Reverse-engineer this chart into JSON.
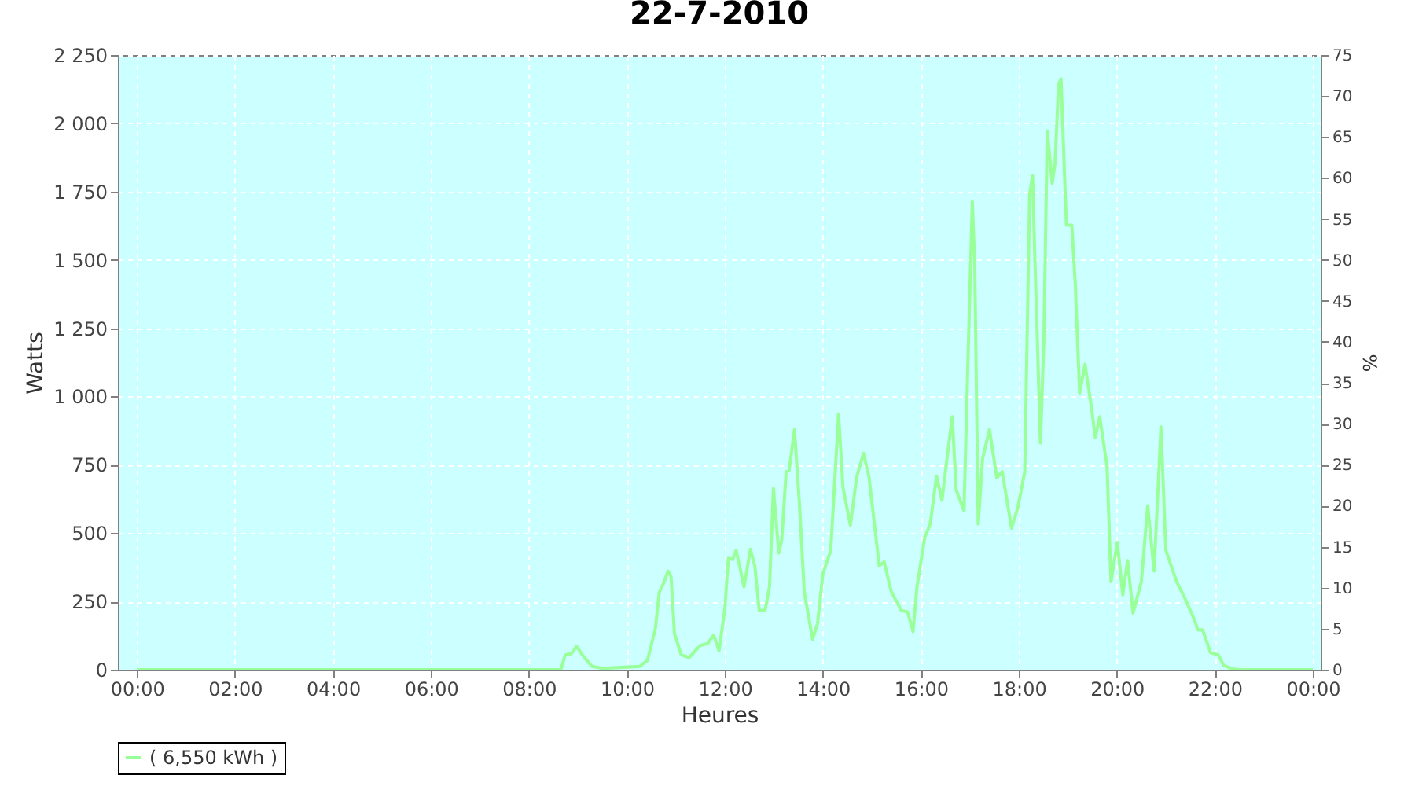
{
  "chart_data": {
    "type": "line",
    "title": "22-7-2010",
    "xlabel": "Heures",
    "ylabel": "Watts",
    "y2label": "%",
    "xlim": [
      -0.39,
      24.16
    ],
    "ylim": [
      0,
      2250
    ],
    "y2lim": [
      0,
      75
    ],
    "xticks": [
      {
        "value": 0,
        "label": "00:00"
      },
      {
        "value": 2,
        "label": "02:00"
      },
      {
        "value": 4,
        "label": "04:00"
      },
      {
        "value": 6,
        "label": "06:00"
      },
      {
        "value": 8,
        "label": "08:00"
      },
      {
        "value": 10,
        "label": "10:00"
      },
      {
        "value": 12,
        "label": "12:00"
      },
      {
        "value": 14,
        "label": "14:00"
      },
      {
        "value": 16,
        "label": "16:00"
      },
      {
        "value": 18,
        "label": "18:00"
      },
      {
        "value": 20,
        "label": "20:00"
      },
      {
        "value": 22,
        "label": "22:00"
      },
      {
        "value": 24,
        "label": "00:00"
      }
    ],
    "yticks": [
      0,
      250,
      500,
      750,
      {
        "value": 1000,
        "label": "1 000"
      },
      {
        "value": 1250,
        "label": "1 250"
      },
      {
        "value": 1500,
        "label": "1 500"
      },
      {
        "value": 1750,
        "label": "1 750"
      },
      {
        "value": 2000,
        "label": "2 000"
      },
      {
        "value": 2250,
        "label": "2 250"
      }
    ],
    "y2ticks": [
      0,
      5,
      10,
      15,
      20,
      25,
      30,
      35,
      40,
      45,
      50,
      55,
      60,
      65,
      70,
      75
    ],
    "grid": true,
    "legend": "bottom",
    "x": [
      0,
      8.65,
      8.74,
      8.87,
      8.97,
      9.13,
      9.29,
      9.5,
      10.26,
      10.42,
      10.58,
      10.66,
      10.74,
      10.84,
      10.9,
      10.97,
      11.11,
      11.27,
      11.49,
      11.65,
      11.77,
      11.88,
      12.0,
      12.07,
      12.16,
      12.23,
      12.39,
      12.52,
      12.61,
      12.7,
      12.82,
      12.91,
      12.99,
      13.1,
      13.16,
      13.25,
      13.31,
      13.42,
      13.52,
      13.62,
      13.79,
      13.89,
      14.0,
      14.16,
      14.32,
      14.41,
      14.56,
      14.69,
      14.83,
      14.94,
      15.15,
      15.25,
      15.39,
      15.6,
      15.73,
      15.84,
      15.92,
      16.08,
      16.19,
      16.32,
      16.43,
      16.54,
      16.64,
      16.72,
      16.88,
      16.96,
      17.05,
      17.1,
      17.17,
      17.26,
      17.4,
      17.55,
      17.66,
      17.85,
      17.98,
      18.12,
      18.22,
      18.28,
      18.31,
      18.44,
      18.51,
      18.58,
      18.68,
      18.74,
      18.81,
      18.86,
      18.97,
      19.08,
      19.15,
      19.24,
      19.35,
      19.47,
      19.56,
      19.65,
      19.8,
      19.88,
      20.01,
      20.12,
      20.22,
      20.33,
      20.5,
      20.63,
      20.76,
      20.9,
      21.0,
      21.22,
      21.38,
      21.59,
      21.65,
      21.75,
      21.91,
      22.07,
      22.18,
      22.34,
      22.5,
      24
    ],
    "series": [
      {
        "name": "( 6,550 kWh )",
        "color": "#99ff99",
        "values": [
          0,
          0,
          54,
          59,
          86,
          44,
          12,
          5,
          12,
          35,
          150,
          284,
          313,
          361,
          341,
          131,
          54,
          44,
          88,
          96,
          127,
          69,
          226,
          408,
          403,
          437,
          303,
          441,
          380,
          217,
          217,
          303,
          663,
          427,
          476,
          725,
          729,
          878,
          610,
          284,
          111,
          169,
          351,
          437,
          936,
          667,
          529,
          706,
          792,
          706,
          380,
          395,
          288,
          217,
          211,
          140,
          303,
          485,
          533,
          709,
          620,
          783,
          926,
          658,
          581,
          1128,
          1713,
          1473,
          533,
          773,
          879,
          702,
          725,
          518,
          594,
          725,
          1742,
          1808,
          1607,
          830,
          1204,
          1972,
          1780,
          1857,
          2144,
          2163,
          1627,
          1627,
          1415,
          1013,
          1118,
          974,
          850,
          926,
          744,
          322,
          466,
          274,
          399,
          207,
          322,
          600,
          361,
          888,
          437,
          322,
          265,
          180,
          146,
          146,
          63,
          54,
          16,
          4,
          0,
          0
        ]
      }
    ]
  }
}
